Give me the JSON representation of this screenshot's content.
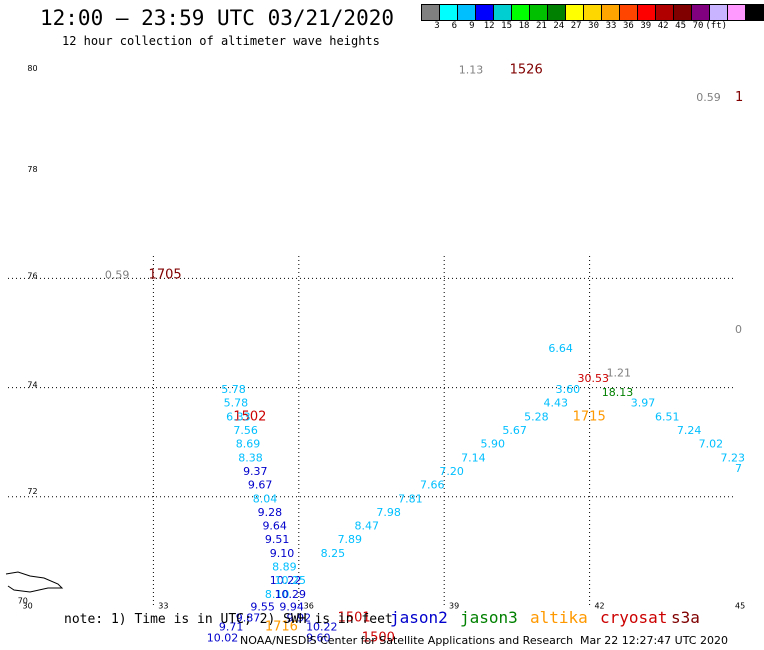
{
  "header": {
    "title": "12:00 – 23:59 UTC 03/21/2020",
    "subtitle": "12 hour collection of altimeter wave heights"
  },
  "scale": {
    "colors": [
      "#808080",
      "#00ffff",
      "#00bfff",
      "#0000ff",
      "#00ced1",
      "#00ff00",
      "#00c000",
      "#008000",
      "#ffff00",
      "#ffd700",
      "#ffa500",
      "#ff4500",
      "#ff0000",
      "#b00000",
      "#800000",
      "#800080",
      "#c8b4ff",
      "#ff99ff",
      "#000000"
    ],
    "labels": [
      "3",
      "6",
      "9",
      "12",
      "15",
      "18",
      "21",
      "24",
      "27",
      "30",
      "33",
      "36",
      "39",
      "42",
      "45",
      "70",
      "(ft)"
    ]
  },
  "footer": {
    "note": "note: 1) Time is in UTC; 2) SWH is in feet",
    "credit": "NOAA/NESDIS Center for Satellite Applications and Research",
    "timestamp": "Mar 22 12:27:47 UTC 2020"
  },
  "legend": [
    {
      "name": "jason2",
      "color": "#0000cc"
    },
    {
      "name": "jason3",
      "color": "#008000"
    },
    {
      "name": "altika",
      "color": "#ff9900"
    },
    {
      "name": "cryosat",
      "color": "#cc0000"
    },
    {
      "name": "s3a",
      "color": "#800000"
    }
  ],
  "chart_data": {
    "type": "scatter",
    "title": "12:00 – 23:59 UTC 03/21/2020",
    "subtitle": "12 hour collection of altimeter wave heights",
    "x_ticks": [
      "30",
      "33",
      "36",
      "39",
      "42",
      "45"
    ],
    "y_ticks": [
      "70",
      "72",
      "74",
      "76",
      "78",
      "80"
    ],
    "xlim": [
      30,
      45
    ],
    "ylim": [
      70,
      80
    ],
    "grid": true,
    "points": [
      {
        "x": 30.4,
        "y": 79.8,
        "text": "80",
        "color": "#000000",
        "size": 8
      },
      {
        "x": 30.4,
        "y": 77.95,
        "text": "78",
        "color": "#000000",
        "size": 8
      },
      {
        "x": 30.4,
        "y": 76.0,
        "text": "76",
        "color": "#000000",
        "size": 8
      },
      {
        "x": 30.4,
        "y": 74.0,
        "text": "74",
        "color": "#000000",
        "size": 8
      },
      {
        "x": 30.4,
        "y": 72.05,
        "text": "72",
        "color": "#000000",
        "size": 8
      },
      {
        "x": 30.2,
        "y": 70.05,
        "text": "70",
        "color": "#000000",
        "size": 8
      },
      {
        "x": 30.3,
        "y": 69.95,
        "text": "30",
        "color": "#000000",
        "size": 8
      },
      {
        "x": 33.1,
        "y": 69.95,
        "text": "33",
        "color": "#000000",
        "size": 8
      },
      {
        "x": 36.1,
        "y": 69.95,
        "text": "36",
        "color": "#000000",
        "size": 8
      },
      {
        "x": 39.1,
        "y": 69.95,
        "text": "39",
        "color": "#000000",
        "size": 8
      },
      {
        "x": 42.1,
        "y": 69.95,
        "text": "42",
        "color": "#000000",
        "size": 8
      },
      {
        "x": 45.0,
        "y": 69.95,
        "text": "45",
        "color": "#000000",
        "size": 8
      },
      {
        "x": 39.3,
        "y": 79.75,
        "text": "1.13",
        "color": "#808080",
        "size": 11
      },
      {
        "x": 40.35,
        "y": 79.75,
        "text": "1526",
        "color": "#800000",
        "size": 13
      },
      {
        "x": 44.2,
        "y": 79.25,
        "text": "0.59",
        "color": "#808080",
        "size": 11
      },
      {
        "x": 45.0,
        "y": 79.25,
        "text": "1",
        "color": "#800000",
        "size": 13
      },
      {
        "x": 32.0,
        "y": 76.0,
        "text": "0.59",
        "color": "#808080",
        "size": 11
      },
      {
        "x": 32.9,
        "y": 76.0,
        "text": "1705",
        "color": "#800000",
        "size": 13
      },
      {
        "x": 45.0,
        "y": 75.0,
        "text": "0",
        "color": "#808080",
        "size": 11
      },
      {
        "x": 34.4,
        "y": 73.9,
        "text": "5.78",
        "color": "#00bfff",
        "size": 11
      },
      {
        "x": 34.45,
        "y": 73.65,
        "text": "5.78",
        "color": "#00bfff",
        "size": 11
      },
      {
        "x": 34.65,
        "y": 73.4,
        "text": "1502",
        "color": "#cc0000",
        "size": 13
      },
      {
        "x": 34.5,
        "y": 73.4,
        "text": "6.33",
        "color": "#00bfff",
        "size": 11
      },
      {
        "x": 34.65,
        "y": 73.15,
        "text": "7.56",
        "color": "#00bfff",
        "size": 11
      },
      {
        "x": 34.7,
        "y": 72.9,
        "text": "8.69",
        "color": "#00bfff",
        "size": 11
      },
      {
        "x": 34.75,
        "y": 72.65,
        "text": "8.38",
        "color": "#00bfff",
        "size": 11
      },
      {
        "x": 34.85,
        "y": 72.4,
        "text": "9.37",
        "color": "#0000cc",
        "size": 11
      },
      {
        "x": 34.95,
        "y": 72.15,
        "text": "9.67",
        "color": "#0000cc",
        "size": 11
      },
      {
        "x": 35.05,
        "y": 71.9,
        "text": "8.04",
        "color": "#00bfff",
        "size": 11
      },
      {
        "x": 35.15,
        "y": 71.65,
        "text": "9.28",
        "color": "#0000cc",
        "size": 11
      },
      {
        "x": 35.25,
        "y": 71.4,
        "text": "9.64",
        "color": "#0000cc",
        "size": 11
      },
      {
        "x": 35.3,
        "y": 71.15,
        "text": "9.51",
        "color": "#0000cc",
        "size": 11
      },
      {
        "x": 35.4,
        "y": 70.9,
        "text": "9.10",
        "color": "#0000cc",
        "size": 11
      },
      {
        "x": 35.45,
        "y": 70.65,
        "text": "8.89",
        "color": "#00bfff",
        "size": 11
      },
      {
        "x": 35.4,
        "y": 70.4,
        "text": "10.22",
        "color": "#0000cc",
        "size": 11
      },
      {
        "x": 35.5,
        "y": 70.4,
        "text": "10.25",
        "color": "#00bfff",
        "size": 11
      },
      {
        "x": 35.3,
        "y": 70.15,
        "text": "8.10",
        "color": "#00bfff",
        "size": 11
      },
      {
        "x": 35.5,
        "y": 70.15,
        "text": "10.29",
        "color": "#0000cc",
        "size": 11
      },
      {
        "x": 35.0,
        "y": 69.92,
        "text": "9.55",
        "color": "#0000cc",
        "size": 11
      },
      {
        "x": 35.6,
        "y": 69.92,
        "text": "9.94",
        "color": "#0000cc",
        "size": 11
      },
      {
        "x": 34.7,
        "y": 69.72,
        "text": "9.87",
        "color": "#0000cc",
        "size": 11
      },
      {
        "x": 35.75,
        "y": 69.72,
        "text": "9.92",
        "color": "#0000cc",
        "size": 11
      },
      {
        "x": 34.35,
        "y": 69.55,
        "text": "9.71",
        "color": "#0000cc",
        "size": 11
      },
      {
        "x": 35.3,
        "y": 69.55,
        "text": "1716",
        "color": "#ff9900",
        "size": 13
      },
      {
        "x": 36.15,
        "y": 69.55,
        "text": "10.22",
        "color": "#0000cc",
        "size": 11
      },
      {
        "x": 34.1,
        "y": 69.35,
        "text": "10.02",
        "color": "#0000cc",
        "size": 11
      },
      {
        "x": 36.15,
        "y": 69.35,
        "text": "9.60",
        "color": "#0000cc",
        "size": 11
      },
      {
        "x": 36.8,
        "y": 69.72,
        "text": "1501",
        "color": "#cc0000",
        "size": 13
      },
      {
        "x": 37.3,
        "y": 69.35,
        "text": "1500",
        "color": "#cc0000",
        "size": 13
      },
      {
        "x": 36.45,
        "y": 70.9,
        "text": "8.25",
        "color": "#00bfff",
        "size": 11
      },
      {
        "x": 36.8,
        "y": 71.15,
        "text": "7.89",
        "color": "#00bfff",
        "size": 11
      },
      {
        "x": 37.15,
        "y": 71.4,
        "text": "8.47",
        "color": "#00bfff",
        "size": 11
      },
      {
        "x": 37.6,
        "y": 71.65,
        "text": "7.98",
        "color": "#00bfff",
        "size": 11
      },
      {
        "x": 38.05,
        "y": 71.9,
        "text": "7.81",
        "color": "#00bfff",
        "size": 11
      },
      {
        "x": 38.5,
        "y": 72.15,
        "text": "7.66",
        "color": "#00bfff",
        "size": 11
      },
      {
        "x": 38.9,
        "y": 72.4,
        "text": "7.20",
        "color": "#00bfff",
        "size": 11
      },
      {
        "x": 39.35,
        "y": 72.65,
        "text": "7.14",
        "color": "#00bfff",
        "size": 11
      },
      {
        "x": 39.75,
        "y": 72.9,
        "text": "5.90",
        "color": "#00bfff",
        "size": 11
      },
      {
        "x": 40.2,
        "y": 73.15,
        "text": "5.67",
        "color": "#00bfff",
        "size": 11
      },
      {
        "x": 40.65,
        "y": 73.4,
        "text": "5.28",
        "color": "#00bfff",
        "size": 11
      },
      {
        "x": 41.05,
        "y": 73.65,
        "text": "4.43",
        "color": "#00bfff",
        "size": 11
      },
      {
        "x": 41.65,
        "y": 73.4,
        "text": "1715",
        "color": "#ff9900",
        "size": 13
      },
      {
        "x": 41.3,
        "y": 73.9,
        "text": "3.60",
        "color": "#00bfff",
        "size": 11
      },
      {
        "x": 41.15,
        "y": 74.65,
        "text": "6.64",
        "color": "#00bfff",
        "size": 11
      },
      {
        "x": 41.75,
        "y": 74.1,
        "text": "30.53",
        "color": "#cc0000",
        "size": 11
      },
      {
        "x": 42.35,
        "y": 74.2,
        "text": "1.21",
        "color": "#808080",
        "size": 11
      },
      {
        "x": 42.25,
        "y": 73.85,
        "text": "18.13",
        "color": "#008000",
        "size": 11
      },
      {
        "x": 42.85,
        "y": 73.65,
        "text": "3.97",
        "color": "#00bfff",
        "size": 11
      },
      {
        "x": 43.35,
        "y": 73.4,
        "text": "6.51",
        "color": "#00bfff",
        "size": 11
      },
      {
        "x": 43.8,
        "y": 73.15,
        "text": "7.24",
        "color": "#00bfff",
        "size": 11
      },
      {
        "x": 44.25,
        "y": 72.9,
        "text": "7.02",
        "color": "#00bfff",
        "size": 11
      },
      {
        "x": 44.7,
        "y": 72.65,
        "text": "7.23",
        "color": "#00bfff",
        "size": 11
      },
      {
        "x": 45.0,
        "y": 72.45,
        "text": "7",
        "color": "#00bfff",
        "size": 11
      }
    ]
  }
}
